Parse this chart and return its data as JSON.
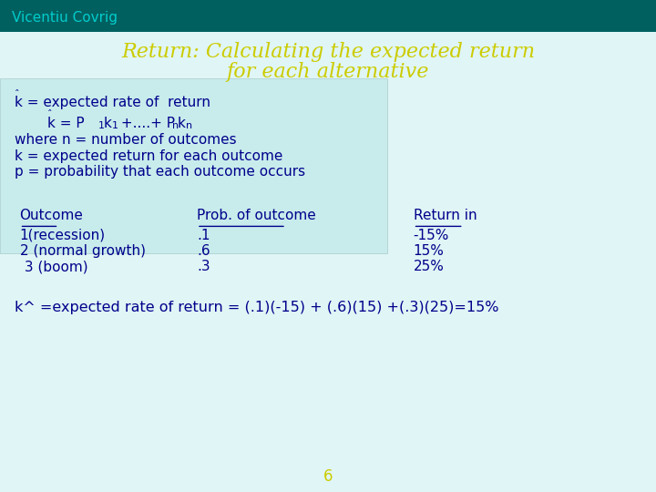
{
  "header_text": "Vicentiu Covrig",
  "header_bg": "#006060",
  "header_text_color": "#00cccc",
  "slide_bg": "#e0f5f5",
  "title_line1": "Return: Calculating the expected return",
  "title_line2": "for each alternative",
  "title_color": "#cccc00",
  "formula_box_bg": "#c8ecec",
  "table_header": [
    "Outcome",
    "Prob. of outcome",
    "Return in"
  ],
  "table_rows": [
    [
      "1(recession)",
      ".1",
      "-15%"
    ],
    [
      "2 (normal growth)",
      ".6",
      "15%"
    ],
    [
      " 3 (boom)",
      ".3",
      "25%"
    ]
  ],
  "table_text_color": "#00008b",
  "body_text_color": "#00008b",
  "formula_text": "k^ =expected rate of return = (.1)(-15) + (.6)(15) +(.3)(25)=15%",
  "page_number": "6",
  "page_number_color": "#cccc00"
}
